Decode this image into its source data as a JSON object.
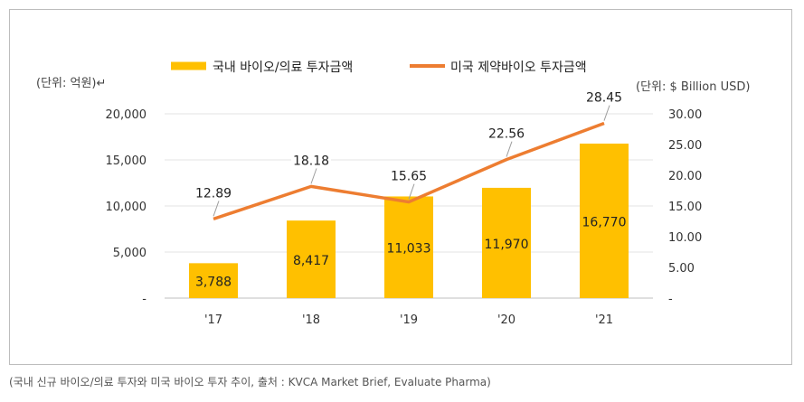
{
  "chart_data": {
    "type": "bar",
    "categories": [
      "'17",
      "'18",
      "'19",
      "'20",
      "'21"
    ],
    "series": [
      {
        "name": "국내 바이오/의료 투자금액",
        "type": "bar",
        "axis": "left",
        "values": [
          3788,
          8417,
          11033,
          11970,
          16770
        ],
        "value_labels": [
          "3,788",
          "8,417",
          "11,033",
          "11,970",
          "16,770"
        ],
        "color": "#ffc000"
      },
      {
        "name": "미국 제약바이오 투자금액",
        "type": "line",
        "axis": "right",
        "values": [
          12.89,
          18.18,
          15.65,
          22.56,
          28.45
        ],
        "value_labels": [
          "12.89",
          "18.18",
          "15.65",
          "22.56",
          "28.45"
        ],
        "color": "#ed7d31"
      }
    ],
    "left_axis": {
      "unit_label": "(단위: 억원)↵",
      "ylim": [
        0,
        20000
      ],
      "ticks": [
        0,
        5000,
        10000,
        15000,
        20000
      ],
      "tick_labels": [
        "-",
        "5,000",
        "10,000",
        "15,000",
        "20,000"
      ]
    },
    "right_axis": {
      "unit_label": "(단위: $ Billion USD)",
      "ylim": [
        0,
        30
      ],
      "ticks": [
        0,
        5,
        10,
        15,
        20,
        25,
        30
      ],
      "tick_labels": [
        "-",
        "5.00",
        "10.00",
        "15.00",
        "20.00",
        "25.00",
        "30.00"
      ]
    },
    "legend_position": "top",
    "grid": true
  },
  "caption": "(국내 신규 바이오/의료 투자와 미국 바이오 투자 추이, 출처 : KVCA Market Brief, Evaluate Pharma)"
}
